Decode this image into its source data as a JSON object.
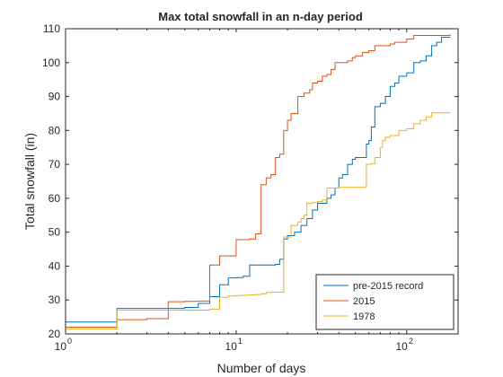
{
  "chart_data": {
    "type": "line",
    "title": "Max total snowfall in an n-day period",
    "xlabel": "Number of days",
    "ylabel": "Total snowfall (in)",
    "x_scale": "log",
    "xlim": [
      1,
      200
    ],
    "ylim": [
      20,
      110
    ],
    "x_ticks": [
      {
        "base": "10",
        "exp": "0",
        "value": 1
      },
      {
        "base": "10",
        "exp": "1",
        "value": 10
      },
      {
        "base": "10",
        "exp": "2",
        "value": 100
      }
    ],
    "y_ticks": [
      "20",
      "30",
      "40",
      "50",
      "60",
      "70",
      "80",
      "90",
      "100",
      "110"
    ],
    "legend_position": "bottom-right",
    "grid": false,
    "series": [
      {
        "name": "pre-2015 record",
        "color": "#0072bd",
        "points": [
          [
            1,
            23.5
          ],
          [
            2,
            27.5
          ],
          [
            3,
            27.5
          ],
          [
            4,
            27.5
          ],
          [
            5,
            27.8
          ],
          [
            6,
            29
          ],
          [
            7,
            31
          ],
          [
            8,
            34.5
          ],
          [
            9,
            36.5
          ],
          [
            10,
            36.6
          ],
          [
            11,
            37
          ],
          [
            12,
            40.3
          ],
          [
            13,
            40.3
          ],
          [
            14,
            40.3
          ],
          [
            15,
            40.3
          ],
          [
            16,
            40.3
          ],
          [
            17,
            40.5
          ],
          [
            18,
            42
          ],
          [
            19,
            48
          ],
          [
            20,
            49
          ],
          [
            22,
            50
          ],
          [
            24,
            52
          ],
          [
            26,
            54
          ],
          [
            28,
            56.5
          ],
          [
            30,
            58.5
          ],
          [
            32,
            58.5
          ],
          [
            34,
            60
          ],
          [
            36,
            61
          ],
          [
            38,
            63
          ],
          [
            40,
            66
          ],
          [
            42,
            67
          ],
          [
            45,
            70
          ],
          [
            48,
            71.5
          ],
          [
            50,
            72
          ],
          [
            55,
            72
          ],
          [
            58,
            76
          ],
          [
            60,
            77
          ],
          [
            62,
            81
          ],
          [
            65,
            87
          ],
          [
            70,
            88
          ],
          [
            75,
            90
          ],
          [
            80,
            93
          ],
          [
            85,
            94
          ],
          [
            90,
            96
          ],
          [
            95,
            96
          ],
          [
            100,
            97
          ],
          [
            110,
            100
          ],
          [
            120,
            100.5
          ],
          [
            130,
            102
          ],
          [
            140,
            105
          ],
          [
            150,
            106
          ],
          [
            160,
            107.5
          ],
          [
            180,
            107.5
          ]
        ]
      },
      {
        "name": "2015",
        "color": "#d95319",
        "points": [
          [
            1,
            22
          ],
          [
            2,
            24.2
          ],
          [
            3,
            24.5
          ],
          [
            4,
            29.5
          ],
          [
            5,
            29.6
          ],
          [
            6,
            29.7
          ],
          [
            7,
            40.3
          ],
          [
            8,
            43
          ],
          [
            9,
            43
          ],
          [
            10,
            47.8
          ],
          [
            11,
            47.8
          ],
          [
            12,
            48
          ],
          [
            13,
            49.5
          ],
          [
            14,
            64
          ],
          [
            15,
            66
          ],
          [
            16,
            67
          ],
          [
            17,
            72
          ],
          [
            18,
            73
          ],
          [
            19,
            80
          ],
          [
            20,
            83
          ],
          [
            21,
            85
          ],
          [
            22,
            85
          ],
          [
            23,
            90
          ],
          [
            24,
            90
          ],
          [
            25,
            91
          ],
          [
            27,
            92
          ],
          [
            28,
            94
          ],
          [
            30,
            94.5
          ],
          [
            32,
            96
          ],
          [
            34,
            96.5
          ],
          [
            36,
            98
          ],
          [
            38,
            100
          ],
          [
            40,
            100
          ],
          [
            45,
            100.5
          ],
          [
            48,
            101.5
          ],
          [
            50,
            102
          ],
          [
            55,
            103
          ],
          [
            60,
            103.5
          ],
          [
            65,
            105
          ],
          [
            70,
            105
          ],
          [
            80,
            105.5
          ],
          [
            85,
            106
          ],
          [
            90,
            106
          ],
          [
            100,
            107
          ],
          [
            110,
            108
          ],
          [
            180,
            108.3
          ]
        ]
      },
      {
        "name": "1978",
        "color": "#edb120",
        "points": [
          [
            1,
            21.5
          ],
          [
            2,
            27
          ],
          [
            3,
            27
          ],
          [
            4,
            27
          ],
          [
            5,
            27
          ],
          [
            6,
            27
          ],
          [
            7,
            27.3
          ],
          [
            8,
            30.8
          ],
          [
            9,
            31.2
          ],
          [
            10,
            31.3
          ],
          [
            11,
            31.4
          ],
          [
            12,
            31.5
          ],
          [
            13,
            31.6
          ],
          [
            14,
            31.8
          ],
          [
            15,
            32.2
          ],
          [
            16,
            32.3
          ],
          [
            17,
            32.3
          ],
          [
            18,
            32.3
          ],
          [
            19,
            48.6
          ],
          [
            20,
            48.6
          ],
          [
            21,
            52
          ],
          [
            22,
            52
          ],
          [
            23,
            53
          ],
          [
            24,
            54
          ],
          [
            25,
            55
          ],
          [
            26,
            58.5
          ],
          [
            28,
            58.7
          ],
          [
            30,
            59
          ],
          [
            32,
            59.5
          ],
          [
            34,
            63
          ],
          [
            40,
            63.2
          ],
          [
            45,
            63.2
          ],
          [
            50,
            63.2
          ],
          [
            55,
            63.3
          ],
          [
            58,
            70
          ],
          [
            62,
            70.2
          ],
          [
            65,
            72
          ],
          [
            70,
            75
          ],
          [
            72,
            77
          ],
          [
            75,
            78
          ],
          [
            80,
            78.5
          ],
          [
            90,
            80
          ],
          [
            100,
            80.5
          ],
          [
            110,
            82
          ],
          [
            120,
            83
          ],
          [
            130,
            84
          ],
          [
            140,
            85.2
          ],
          [
            180,
            85.2
          ]
        ]
      }
    ]
  }
}
